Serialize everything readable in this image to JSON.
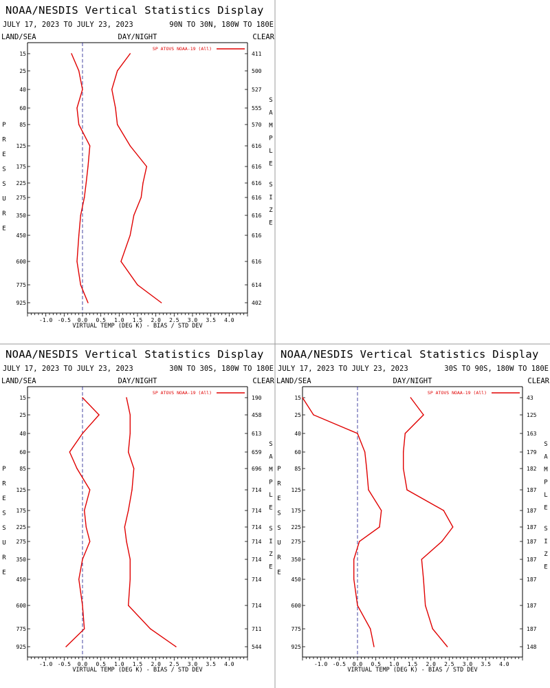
{
  "common": {
    "title": "NOAA/NESDIS Vertical Statistics Display",
    "date_range": "JULY 17, 2023 TO JULY 23, 2023",
    "land_sea": "LAND/SEA",
    "day_night": "DAY/NIGHT",
    "clear": "CLEAR",
    "xlabel": "VIRTUAL TEMP (DEG K) - BIAS / STD DEV",
    "ylabel": "PRESSURE",
    "right_label": "SAMPLE SIZE",
    "legend": "SP ATOVS NOAA-19 (All)",
    "colors": {
      "series": "#e00000",
      "zero_line": "#1a1a8c",
      "text": "#000000",
      "divider": "#999999"
    }
  },
  "chart_data": [
    {
      "type": "line",
      "region": "90N TO 30N, 180W TO 180E",
      "pressure_levels": [
        15,
        25,
        40,
        60,
        85,
        125,
        175,
        225,
        275,
        350,
        450,
        600,
        775,
        925
      ],
      "sample_size": [
        411,
        500,
        527,
        555,
        570,
        616,
        616,
        616,
        616,
        616,
        616,
        616,
        614,
        402
      ],
      "xlim": [
        -1.5,
        4.5
      ],
      "xticks": [
        "-1.0",
        "-0.5",
        "0.0",
        "0.5",
        "1.0",
        "1.5",
        "2.0",
        "2.5",
        "3.0",
        "3.5",
        "4.0"
      ],
      "series": [
        {
          "name": "bias",
          "values": [
            -0.3,
            -0.1,
            0.0,
            -0.15,
            -0.1,
            0.2,
            0.15,
            0.1,
            0.05,
            -0.05,
            -0.1,
            -0.15,
            -0.05,
            0.15
          ]
        },
        {
          "name": "std_dev",
          "values": [
            1.3,
            0.95,
            0.8,
            0.9,
            0.95,
            1.3,
            1.75,
            1.65,
            1.6,
            1.4,
            1.3,
            1.05,
            1.5,
            2.15
          ]
        }
      ]
    },
    {
      "type": "line",
      "region": "30N TO 30S, 180W TO 180E",
      "pressure_levels": [
        15,
        25,
        40,
        60,
        85,
        125,
        175,
        225,
        275,
        350,
        450,
        600,
        775,
        925
      ],
      "sample_size": [
        190,
        458,
        613,
        659,
        696,
        714,
        714,
        714,
        714,
        714,
        714,
        714,
        711,
        544
      ],
      "xlim": [
        -1.5,
        4.5
      ],
      "xticks": [
        "-1.0",
        "-0.5",
        "0.0",
        "0.5",
        "1.0",
        "1.5",
        "2.0",
        "2.5",
        "3.0",
        "3.5",
        "4.0"
      ],
      "series": [
        {
          "name": "bias",
          "values": [
            0.0,
            0.45,
            0.0,
            -0.35,
            -0.15,
            0.2,
            0.05,
            0.1,
            0.2,
            0.0,
            -0.1,
            0.0,
            0.05,
            -0.45
          ]
        },
        {
          "name": "std_dev",
          "values": [
            1.2,
            1.3,
            1.3,
            1.25,
            1.4,
            1.35,
            1.25,
            1.15,
            1.2,
            1.3,
            1.3,
            1.25,
            1.85,
            2.55
          ]
        }
      ]
    },
    {
      "type": "line",
      "region": "30S TO 90S, 180W TO 180E",
      "pressure_levels": [
        15,
        25,
        40,
        60,
        85,
        125,
        175,
        225,
        275,
        350,
        450,
        600,
        775,
        925
      ],
      "sample_size": [
        43,
        125,
        163,
        179,
        182,
        187,
        187,
        187,
        187,
        187,
        187,
        187,
        187,
        148
      ],
      "xlim": [
        -1.5,
        4.5
      ],
      "xticks": [
        "-1.0",
        "-0.5",
        "0.0",
        "0.5",
        "1.0",
        "1.5",
        "2.0",
        "2.5",
        "3.0",
        "3.5",
        "4.0"
      ],
      "series": [
        {
          "name": "bias",
          "values": [
            -1.5,
            -1.2,
            0.0,
            0.2,
            0.25,
            0.3,
            0.65,
            0.6,
            0.05,
            -0.1,
            -0.1,
            0.0,
            0.35,
            0.45
          ]
        },
        {
          "name": "std_dev",
          "values": [
            1.45,
            1.8,
            1.3,
            1.25,
            1.25,
            1.35,
            2.35,
            2.6,
            2.3,
            1.75,
            1.8,
            1.85,
            2.05,
            2.45
          ]
        }
      ]
    }
  ]
}
